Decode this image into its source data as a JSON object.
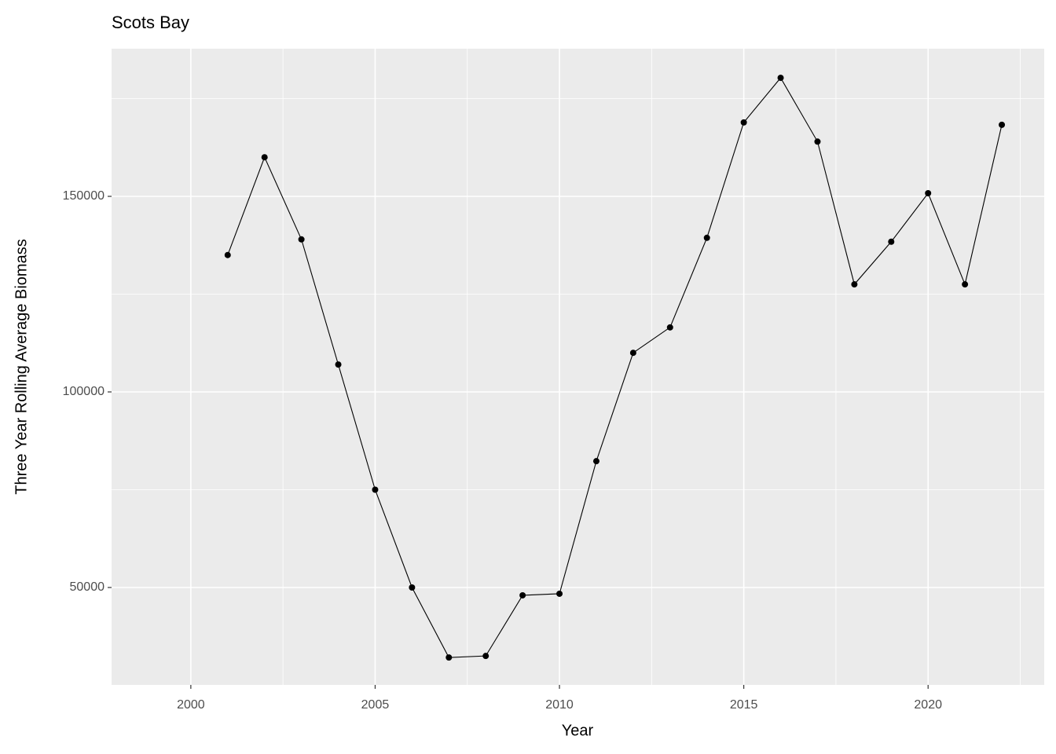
{
  "chart_data": {
    "type": "line",
    "title": "Scots Bay",
    "x_label": "Year",
    "y_label": "Three Year Rolling Average Biomass",
    "x": [
      2001,
      2002,
      2003,
      2004,
      2005,
      2006,
      2007,
      2008,
      2009,
      2010,
      2011,
      2012,
      2013,
      2014,
      2015,
      2016,
      2017,
      2018,
      2019,
      2020,
      2021,
      2022
    ],
    "series": [
      {
        "color": "#000000",
        "values": [
          135000,
          160000,
          139000,
          107000,
          75000,
          50000,
          32100,
          32500,
          48000,
          48400,
          82300,
          110000,
          116500,
          139400,
          168900,
          180300,
          164000,
          127500,
          138400,
          150800,
          127500,
          168300
        ]
      }
    ],
    "xlim": [
      1997.85,
      2023.15
    ],
    "ylim": [
      25100,
      187750
    ],
    "xticks": [
      2000,
      2005,
      2010,
      2015,
      2020
    ],
    "yticks": [
      50000,
      100000,
      150000
    ],
    "xminorticks": [
      2002.5,
      2007.5,
      2012.5,
      2017.5,
      2022.5
    ],
    "yminorticks": [
      75000,
      125000,
      175000
    ],
    "grid": true,
    "panel_color": "#ebebeb"
  }
}
